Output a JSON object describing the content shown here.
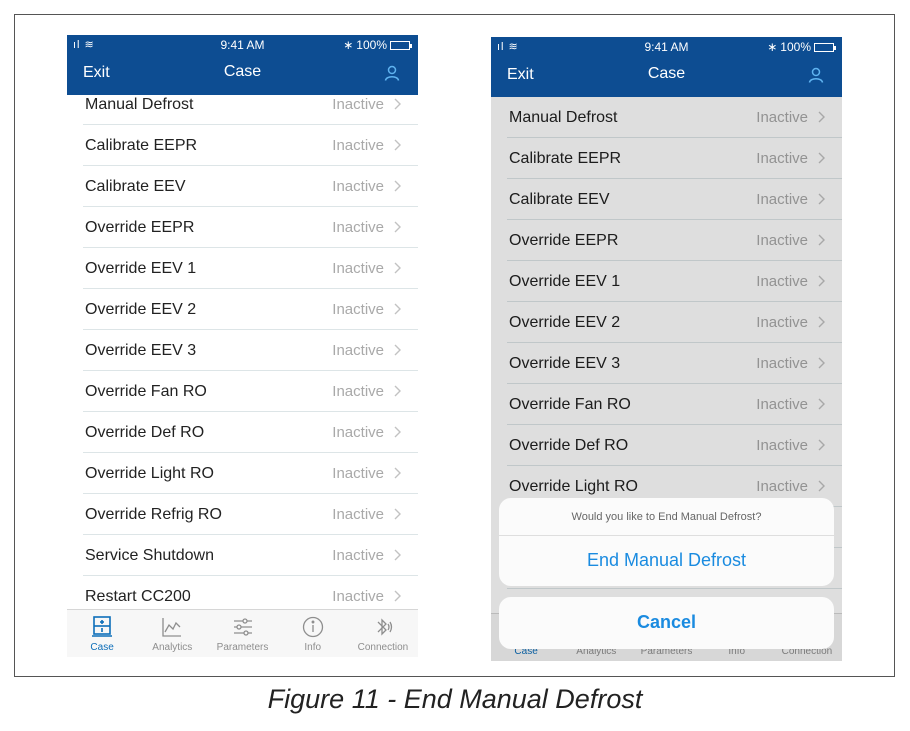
{
  "status_bar": {
    "signal": "ıl",
    "time": "9:41 AM",
    "bluetooth": "∗",
    "battery": "100%"
  },
  "nav": {
    "exit": "Exit",
    "title": "Case"
  },
  "rows": [
    {
      "label": "Manual Defrost",
      "status": "Inactive"
    },
    {
      "label": "Calibrate EEPR",
      "status": "Inactive"
    },
    {
      "label": "Calibrate EEV",
      "status": "Inactive"
    },
    {
      "label": "Override EEPR",
      "status": "Inactive"
    },
    {
      "label": "Override EEV 1",
      "status": "Inactive"
    },
    {
      "label": "Override EEV 2",
      "status": "Inactive"
    },
    {
      "label": "Override EEV 3",
      "status": "Inactive"
    },
    {
      "label": "Override Fan RO",
      "status": "Inactive"
    },
    {
      "label": "Override Def RO",
      "status": "Inactive"
    },
    {
      "label": "Override Light RO",
      "status": "Inactive"
    },
    {
      "label": "Override Refrig RO",
      "status": "Inactive"
    },
    {
      "label": "Service Shutdown",
      "status": "Inactive"
    },
    {
      "label": "Restart CC200",
      "status": "Inactive"
    }
  ],
  "tabs": [
    {
      "label": "Case",
      "icon": "case-icon"
    },
    {
      "label": "Analytics",
      "icon": "analytics-icon"
    },
    {
      "label": "Parameters",
      "icon": "parameters-icon"
    },
    {
      "label": "Info",
      "icon": "info-icon"
    },
    {
      "label": "Connection",
      "icon": "connection-icon"
    }
  ],
  "action_sheet": {
    "message": "Would you like to End Manual Defrost?",
    "action": "End Manual Defrost",
    "cancel": "Cancel"
  },
  "caption": "Figure 11 - End Manual Defrost",
  "colors": {
    "nav": "#0d4d92",
    "accent": "#1a8be0",
    "status_text": "#a9a9a9"
  }
}
